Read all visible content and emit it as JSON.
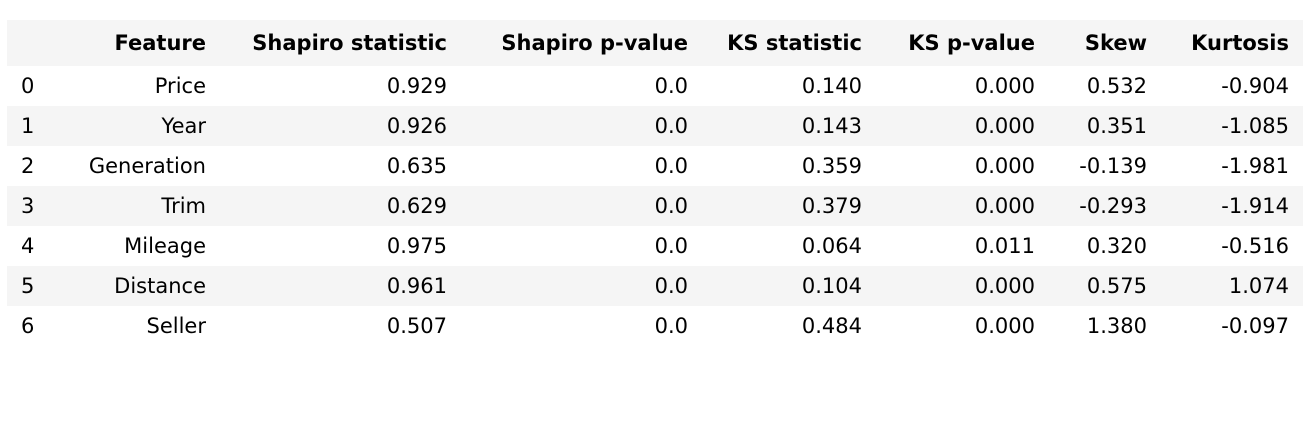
{
  "table": {
    "columns": [
      "",
      "Feature",
      "Shapiro statistic",
      "Shapiro p-value",
      "KS statistic",
      "KS p-value",
      "Skew",
      "Kurtosis"
    ],
    "rows": [
      {
        "index": "0",
        "feature": "Price",
        "shapiro_stat": "0.929",
        "shapiro_p": "0.0",
        "ks_stat": "0.140",
        "ks_p": "0.000",
        "skew": "0.532",
        "kurtosis": "-0.904"
      },
      {
        "index": "1",
        "feature": "Year",
        "shapiro_stat": "0.926",
        "shapiro_p": "0.0",
        "ks_stat": "0.143",
        "ks_p": "0.000",
        "skew": "0.351",
        "kurtosis": "-1.085"
      },
      {
        "index": "2",
        "feature": "Generation",
        "shapiro_stat": "0.635",
        "shapiro_p": "0.0",
        "ks_stat": "0.359",
        "ks_p": "0.000",
        "skew": "-0.139",
        "kurtosis": "-1.981"
      },
      {
        "index": "3",
        "feature": "Trim",
        "shapiro_stat": "0.629",
        "shapiro_p": "0.0",
        "ks_stat": "0.379",
        "ks_p": "0.000",
        "skew": "-0.293",
        "kurtosis": "-1.914"
      },
      {
        "index": "4",
        "feature": "Mileage",
        "shapiro_stat": "0.975",
        "shapiro_p": "0.0",
        "ks_stat": "0.064",
        "ks_p": "0.011",
        "skew": "0.320",
        "kurtosis": "-0.516"
      },
      {
        "index": "5",
        "feature": "Distance",
        "shapiro_stat": "0.961",
        "shapiro_p": "0.0",
        "ks_stat": "0.104",
        "ks_p": "0.000",
        "skew": "0.575",
        "kurtosis": "1.074"
      },
      {
        "index": "6",
        "feature": "Seller",
        "shapiro_stat": "0.507",
        "shapiro_p": "0.0",
        "ks_stat": "0.484",
        "ks_p": "0.000",
        "skew": "1.380",
        "kurtosis": "-0.097"
      }
    ]
  },
  "colors": {
    "header_bg": "#f5f5f5",
    "stripe_bg": "#f5f5f5",
    "text": "#000000"
  }
}
